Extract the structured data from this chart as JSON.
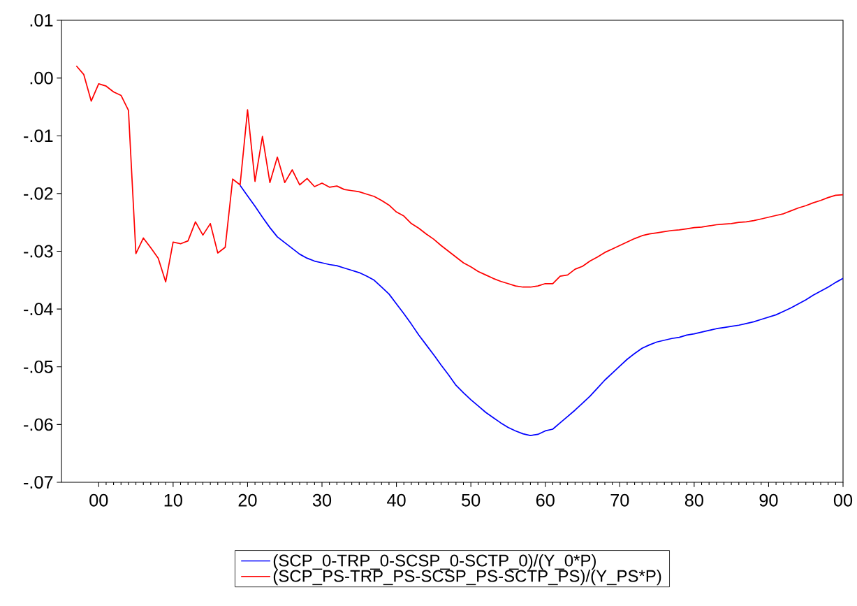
{
  "chart_data": {
    "type": "line",
    "x": [
      1997,
      1998,
      1999,
      2000,
      2001,
      2002,
      2003,
      2004,
      2005,
      2006,
      2007,
      2008,
      2009,
      2010,
      2011,
      2012,
      2013,
      2014,
      2015,
      2016,
      2017,
      2018,
      2019,
      2020,
      2021,
      2022,
      2023,
      2024,
      2025,
      2026,
      2027,
      2028,
      2029,
      2030,
      2031,
      2032,
      2033,
      2034,
      2035,
      2036,
      2037,
      2038,
      2039,
      2040,
      2041,
      2042,
      2043,
      2044,
      2045,
      2046,
      2047,
      2048,
      2049,
      2050,
      2051,
      2052,
      2053,
      2054,
      2055,
      2056,
      2057,
      2058,
      2059,
      2060,
      2061,
      2062,
      2063,
      2064,
      2065,
      2066,
      2067,
      2068,
      2069,
      2070,
      2071,
      2072,
      2073,
      2074,
      2075,
      2076,
      2077,
      2078,
      2079,
      2080,
      2081,
      2082,
      2083,
      2084,
      2085,
      2086,
      2087,
      2088,
      2089,
      2090,
      2091,
      2092,
      2093,
      2094,
      2095,
      2096,
      2097,
      2098,
      2099,
      2100
    ],
    "series": [
      {
        "name": "(SCP_0-TRP_0-SCSP_0-SCTP_0)/(Y_0*P)",
        "color": "#0000ff",
        "values": [
          null,
          null,
          null,
          null,
          null,
          null,
          null,
          null,
          null,
          null,
          null,
          null,
          null,
          null,
          null,
          null,
          null,
          null,
          null,
          null,
          null,
          null,
          -0.0186,
          -0.0204,
          -0.0222,
          -0.0241,
          -0.0259,
          -0.0275,
          -0.0285,
          -0.0295,
          -0.0305,
          -0.0312,
          -0.0317,
          -0.032,
          -0.0323,
          -0.0325,
          -0.0329,
          -0.0333,
          -0.0337,
          -0.0343,
          -0.035,
          -0.0362,
          -0.0374,
          -0.0391,
          -0.0408,
          -0.0426,
          -0.0445,
          -0.0462,
          -0.0479,
          -0.0497,
          -0.0514,
          -0.0532,
          -0.0545,
          -0.0557,
          -0.0568,
          -0.0579,
          -0.0588,
          -0.0597,
          -0.0605,
          -0.0611,
          -0.0616,
          -0.0619,
          -0.0617,
          -0.0611,
          -0.0608,
          -0.0597,
          -0.0586,
          -0.0575,
          -0.0563,
          -0.0551,
          -0.0537,
          -0.0523,
          -0.0511,
          -0.0499,
          -0.0487,
          -0.0477,
          -0.0468,
          -0.0462,
          -0.0457,
          -0.0454,
          -0.0451,
          -0.0449,
          -0.0445,
          -0.0443,
          -0.044,
          -0.0437,
          -0.0434,
          -0.0432,
          -0.043,
          -0.0428,
          -0.0425,
          -0.0422,
          -0.0418,
          -0.0414,
          -0.041,
          -0.0404,
          -0.0398,
          -0.0391,
          -0.0384,
          -0.0376,
          -0.0369,
          -0.0362,
          -0.0354,
          -0.0347
        ]
      },
      {
        "name": "(SCP_PS-TRP_PS-SCSP_PS-SCTP_PS)/(Y_PS*P)",
        "color": "#ff0000",
        "values": [
          0.0021,
          0.0006,
          -0.004,
          -0.001,
          -0.0014,
          -0.0024,
          -0.003,
          -0.0056,
          -0.0304,
          -0.0277,
          -0.0294,
          -0.0312,
          -0.0353,
          -0.0284,
          -0.0287,
          -0.0282,
          -0.0249,
          -0.0272,
          -0.0252,
          -0.0303,
          -0.0293,
          -0.0175,
          -0.0185,
          -0.0055,
          -0.0179,
          -0.0101,
          -0.0181,
          -0.0137,
          -0.0181,
          -0.0159,
          -0.0185,
          -0.0174,
          -0.0188,
          -0.0182,
          -0.0189,
          -0.0187,
          -0.0193,
          -0.0195,
          -0.0197,
          -0.0201,
          -0.0205,
          -0.0212,
          -0.022,
          -0.0232,
          -0.0239,
          -0.0252,
          -0.026,
          -0.027,
          -0.0279,
          -0.029,
          -0.03,
          -0.031,
          -0.032,
          -0.0327,
          -0.0335,
          -0.0341,
          -0.0347,
          -0.0352,
          -0.0356,
          -0.036,
          -0.0362,
          -0.0362,
          -0.036,
          -0.0356,
          -0.0356,
          -0.0343,
          -0.0341,
          -0.0331,
          -0.0326,
          -0.0317,
          -0.031,
          -0.0302,
          -0.0296,
          -0.029,
          -0.0284,
          -0.0278,
          -0.0273,
          -0.027,
          -0.0268,
          -0.0266,
          -0.0264,
          -0.0263,
          -0.0261,
          -0.0259,
          -0.0258,
          -0.0256,
          -0.0254,
          -0.0253,
          -0.0252,
          -0.025,
          -0.0249,
          -0.0247,
          -0.0244,
          -0.0241,
          -0.0238,
          -0.0235,
          -0.023,
          -0.0225,
          -0.0221,
          -0.0216,
          -0.0212,
          -0.0207,
          -0.0203,
          -0.0202
        ]
      }
    ],
    "xlim": [
      1995,
      2100
    ],
    "ylim": [
      -0.07,
      0.01
    ],
    "xticks": [
      {
        "value": 2000,
        "label": "00"
      },
      {
        "value": 2010,
        "label": "10"
      },
      {
        "value": 2020,
        "label": "20"
      },
      {
        "value": 2030,
        "label": "30"
      },
      {
        "value": 2040,
        "label": "40"
      },
      {
        "value": 2050,
        "label": "50"
      },
      {
        "value": 2060,
        "label": "60"
      },
      {
        "value": 2070,
        "label": "70"
      },
      {
        "value": 2080,
        "label": "80"
      },
      {
        "value": 2090,
        "label": "90"
      },
      {
        "value": 2100,
        "label": "00"
      }
    ],
    "yticks": [
      {
        "value": 0.01,
        "label": ".01"
      },
      {
        "value": 0.0,
        "label": ".00"
      },
      {
        "value": -0.01,
        "label": "-.01"
      },
      {
        "value": -0.02,
        "label": "-.02"
      },
      {
        "value": -0.03,
        "label": "-.03"
      },
      {
        "value": -0.04,
        "label": "-.04"
      },
      {
        "value": -0.05,
        "label": "-.05"
      },
      {
        "value": -0.06,
        "label": "-.06"
      },
      {
        "value": -0.07,
        "label": "-.07"
      }
    ],
    "legend": "bottom"
  }
}
